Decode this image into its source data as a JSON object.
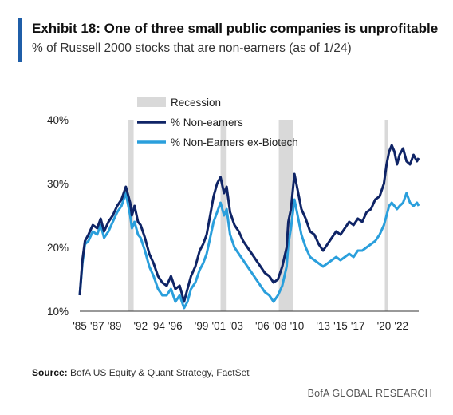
{
  "header": {
    "title": "Exhibit 18: One of three small public companies is unprofitable",
    "subtitle": "% of Russell 2000 stocks that are non-earners (as of 1/24)"
  },
  "footer": {
    "source_label": "Source:",
    "source_text": "BofA US Equity & Quant Strategy, FactSet",
    "brand": "BofA GLOBAL RESEARCH"
  },
  "colors": {
    "accent": "#1f5ea8",
    "recession": "#d9d9d9",
    "non_earners": "#0f2466",
    "ex_biotech": "#2a9fdc"
  },
  "chart_data": {
    "type": "line",
    "xlim": [
      1985,
      2024
    ],
    "ylim": [
      10,
      40
    ],
    "y_ticks": [
      10,
      20,
      30,
      40
    ],
    "y_tick_labels": [
      "10%",
      "20%",
      "30%",
      "40%"
    ],
    "x_ticks": [
      1985,
      1987,
      1989,
      1992,
      1994,
      1996,
      1999,
      2001,
      2003,
      2006,
      2008,
      2010,
      2013,
      2015,
      2017,
      2020,
      2022
    ],
    "x_tick_labels": [
      "'85",
      "'87",
      "'89",
      "'92",
      "'94",
      "'96",
      "'99",
      "'01",
      "'03",
      "'06",
      "'08",
      "'10",
      "'13",
      "'15",
      "'17",
      "'20",
      "'22"
    ],
    "legend": {
      "position": "top-center",
      "recession_label": "Recession"
    },
    "recessions": [
      [
        1990.6,
        1991.2
      ],
      [
        2001.2,
        2001.9
      ],
      [
        2007.9,
        2009.5
      ],
      [
        2020.1,
        2020.4
      ]
    ],
    "series": [
      {
        "name": "% Non-earners",
        "color": "#0f2466",
        "x": [
          1985.0,
          1985.3,
          1985.6,
          1986.0,
          1986.5,
          1987.0,
          1987.4,
          1987.8,
          1988.3,
          1988.8,
          1989.3,
          1989.8,
          1990.3,
          1990.8,
          1991.0,
          1991.3,
          1991.7,
          1992.0,
          1992.5,
          1993.0,
          1993.5,
          1994.0,
          1994.5,
          1995.0,
          1995.5,
          1996.0,
          1996.5,
          1997.0,
          1997.4,
          1997.8,
          1998.3,
          1998.8,
          1999.2,
          1999.6,
          2000.0,
          2000.4,
          2000.8,
          2001.2,
          2001.6,
          2001.9,
          2002.3,
          2002.8,
          2003.3,
          2003.8,
          2004.3,
          2004.8,
          2005.3,
          2005.8,
          2006.3,
          2006.8,
          2007.3,
          2007.8,
          2008.3,
          2008.8,
          2009.0,
          2009.3,
          2009.7,
          2010.0,
          2010.5,
          2011.0,
          2011.5,
          2012.0,
          2012.5,
          2013.0,
          2013.5,
          2014.0,
          2014.5,
          2015.0,
          2015.5,
          2016.0,
          2016.5,
          2017.0,
          2017.5,
          2018.0,
          2018.5,
          2019.0,
          2019.5,
          2020.0,
          2020.3,
          2020.6,
          2020.9,
          2021.2,
          2021.5,
          2021.8,
          2022.2,
          2022.6,
          2023.0,
          2023.4,
          2023.8,
          2024.0
        ],
        "values": [
          12.5,
          18.0,
          21.0,
          22.0,
          23.5,
          23.0,
          24.5,
          22.5,
          24.0,
          25.0,
          26.5,
          27.5,
          29.5,
          27.0,
          25.0,
          26.5,
          24.0,
          23.5,
          21.5,
          19.0,
          17.5,
          15.5,
          14.5,
          14.0,
          15.5,
          13.5,
          14.0,
          11.5,
          13.5,
          15.5,
          17.0,
          19.5,
          20.5,
          22.0,
          25.0,
          28.0,
          30.0,
          31.0,
          28.5,
          29.5,
          25.5,
          23.5,
          22.5,
          21.0,
          20.0,
          19.0,
          18.0,
          17.0,
          16.0,
          15.5,
          14.5,
          15.0,
          17.0,
          20.0,
          24.0,
          26.0,
          31.5,
          29.5,
          26.0,
          24.5,
          22.5,
          22.0,
          20.5,
          19.5,
          20.5,
          21.5,
          22.5,
          22.0,
          23.0,
          24.0,
          23.5,
          24.5,
          24.0,
          25.5,
          26.0,
          27.5,
          28.0,
          30.0,
          33.0,
          35.0,
          36.0,
          35.0,
          33.0,
          34.5,
          35.5,
          33.5,
          33.0,
          34.5,
          33.5,
          34.0
        ]
      },
      {
        "name": "% Non-Earners ex-Biotech",
        "color": "#2a9fdc",
        "x": [
          1985.0,
          1985.3,
          1985.6,
          1986.0,
          1986.5,
          1987.0,
          1987.4,
          1987.8,
          1988.3,
          1988.8,
          1989.3,
          1989.8,
          1990.3,
          1990.8,
          1991.0,
          1991.3,
          1991.7,
          1992.0,
          1992.5,
          1993.0,
          1993.5,
          1994.0,
          1994.5,
          1995.0,
          1995.5,
          1996.0,
          1996.5,
          1997.0,
          1997.4,
          1997.8,
          1998.3,
          1998.8,
          1999.2,
          1999.6,
          2000.0,
          2000.4,
          2000.8,
          2001.2,
          2001.6,
          2001.9,
          2002.3,
          2002.8,
          2003.3,
          2003.8,
          2004.3,
          2004.8,
          2005.3,
          2005.8,
          2006.3,
          2006.8,
          2007.3,
          2007.8,
          2008.3,
          2008.8,
          2009.0,
          2009.3,
          2009.7,
          2010.0,
          2010.5,
          2011.0,
          2011.5,
          2012.0,
          2012.5,
          2013.0,
          2013.5,
          2014.0,
          2014.5,
          2015.0,
          2015.5,
          2016.0,
          2016.5,
          2017.0,
          2017.5,
          2018.0,
          2018.5,
          2019.0,
          2019.5,
          2020.0,
          2020.3,
          2020.6,
          2020.9,
          2021.2,
          2021.5,
          2021.8,
          2022.2,
          2022.6,
          2023.0,
          2023.4,
          2023.8,
          2024.0
        ],
        "values": [
          12.5,
          17.5,
          20.5,
          21.0,
          22.5,
          22.0,
          23.5,
          21.5,
          22.5,
          24.0,
          25.5,
          26.5,
          28.5,
          25.0,
          23.0,
          24.0,
          22.0,
          21.5,
          19.5,
          17.0,
          15.5,
          13.5,
          12.5,
          12.5,
          13.5,
          11.5,
          12.5,
          10.5,
          11.5,
          13.5,
          14.5,
          16.5,
          17.5,
          19.0,
          21.5,
          24.0,
          25.5,
          27.0,
          25.0,
          26.0,
          22.0,
          20.0,
          19.0,
          18.0,
          17.0,
          16.0,
          15.0,
          14.0,
          13.0,
          12.5,
          11.5,
          12.5,
          14.0,
          17.0,
          20.5,
          23.0,
          27.5,
          25.5,
          22.0,
          20.0,
          18.5,
          18.0,
          17.5,
          17.0,
          17.5,
          18.0,
          18.5,
          18.0,
          18.5,
          19.0,
          18.5,
          19.5,
          19.5,
          20.0,
          20.5,
          21.0,
          22.0,
          23.5,
          25.0,
          26.5,
          27.0,
          26.5,
          26.0,
          26.5,
          27.0,
          28.5,
          27.0,
          26.5,
          27.0,
          26.5
        ]
      }
    ]
  }
}
